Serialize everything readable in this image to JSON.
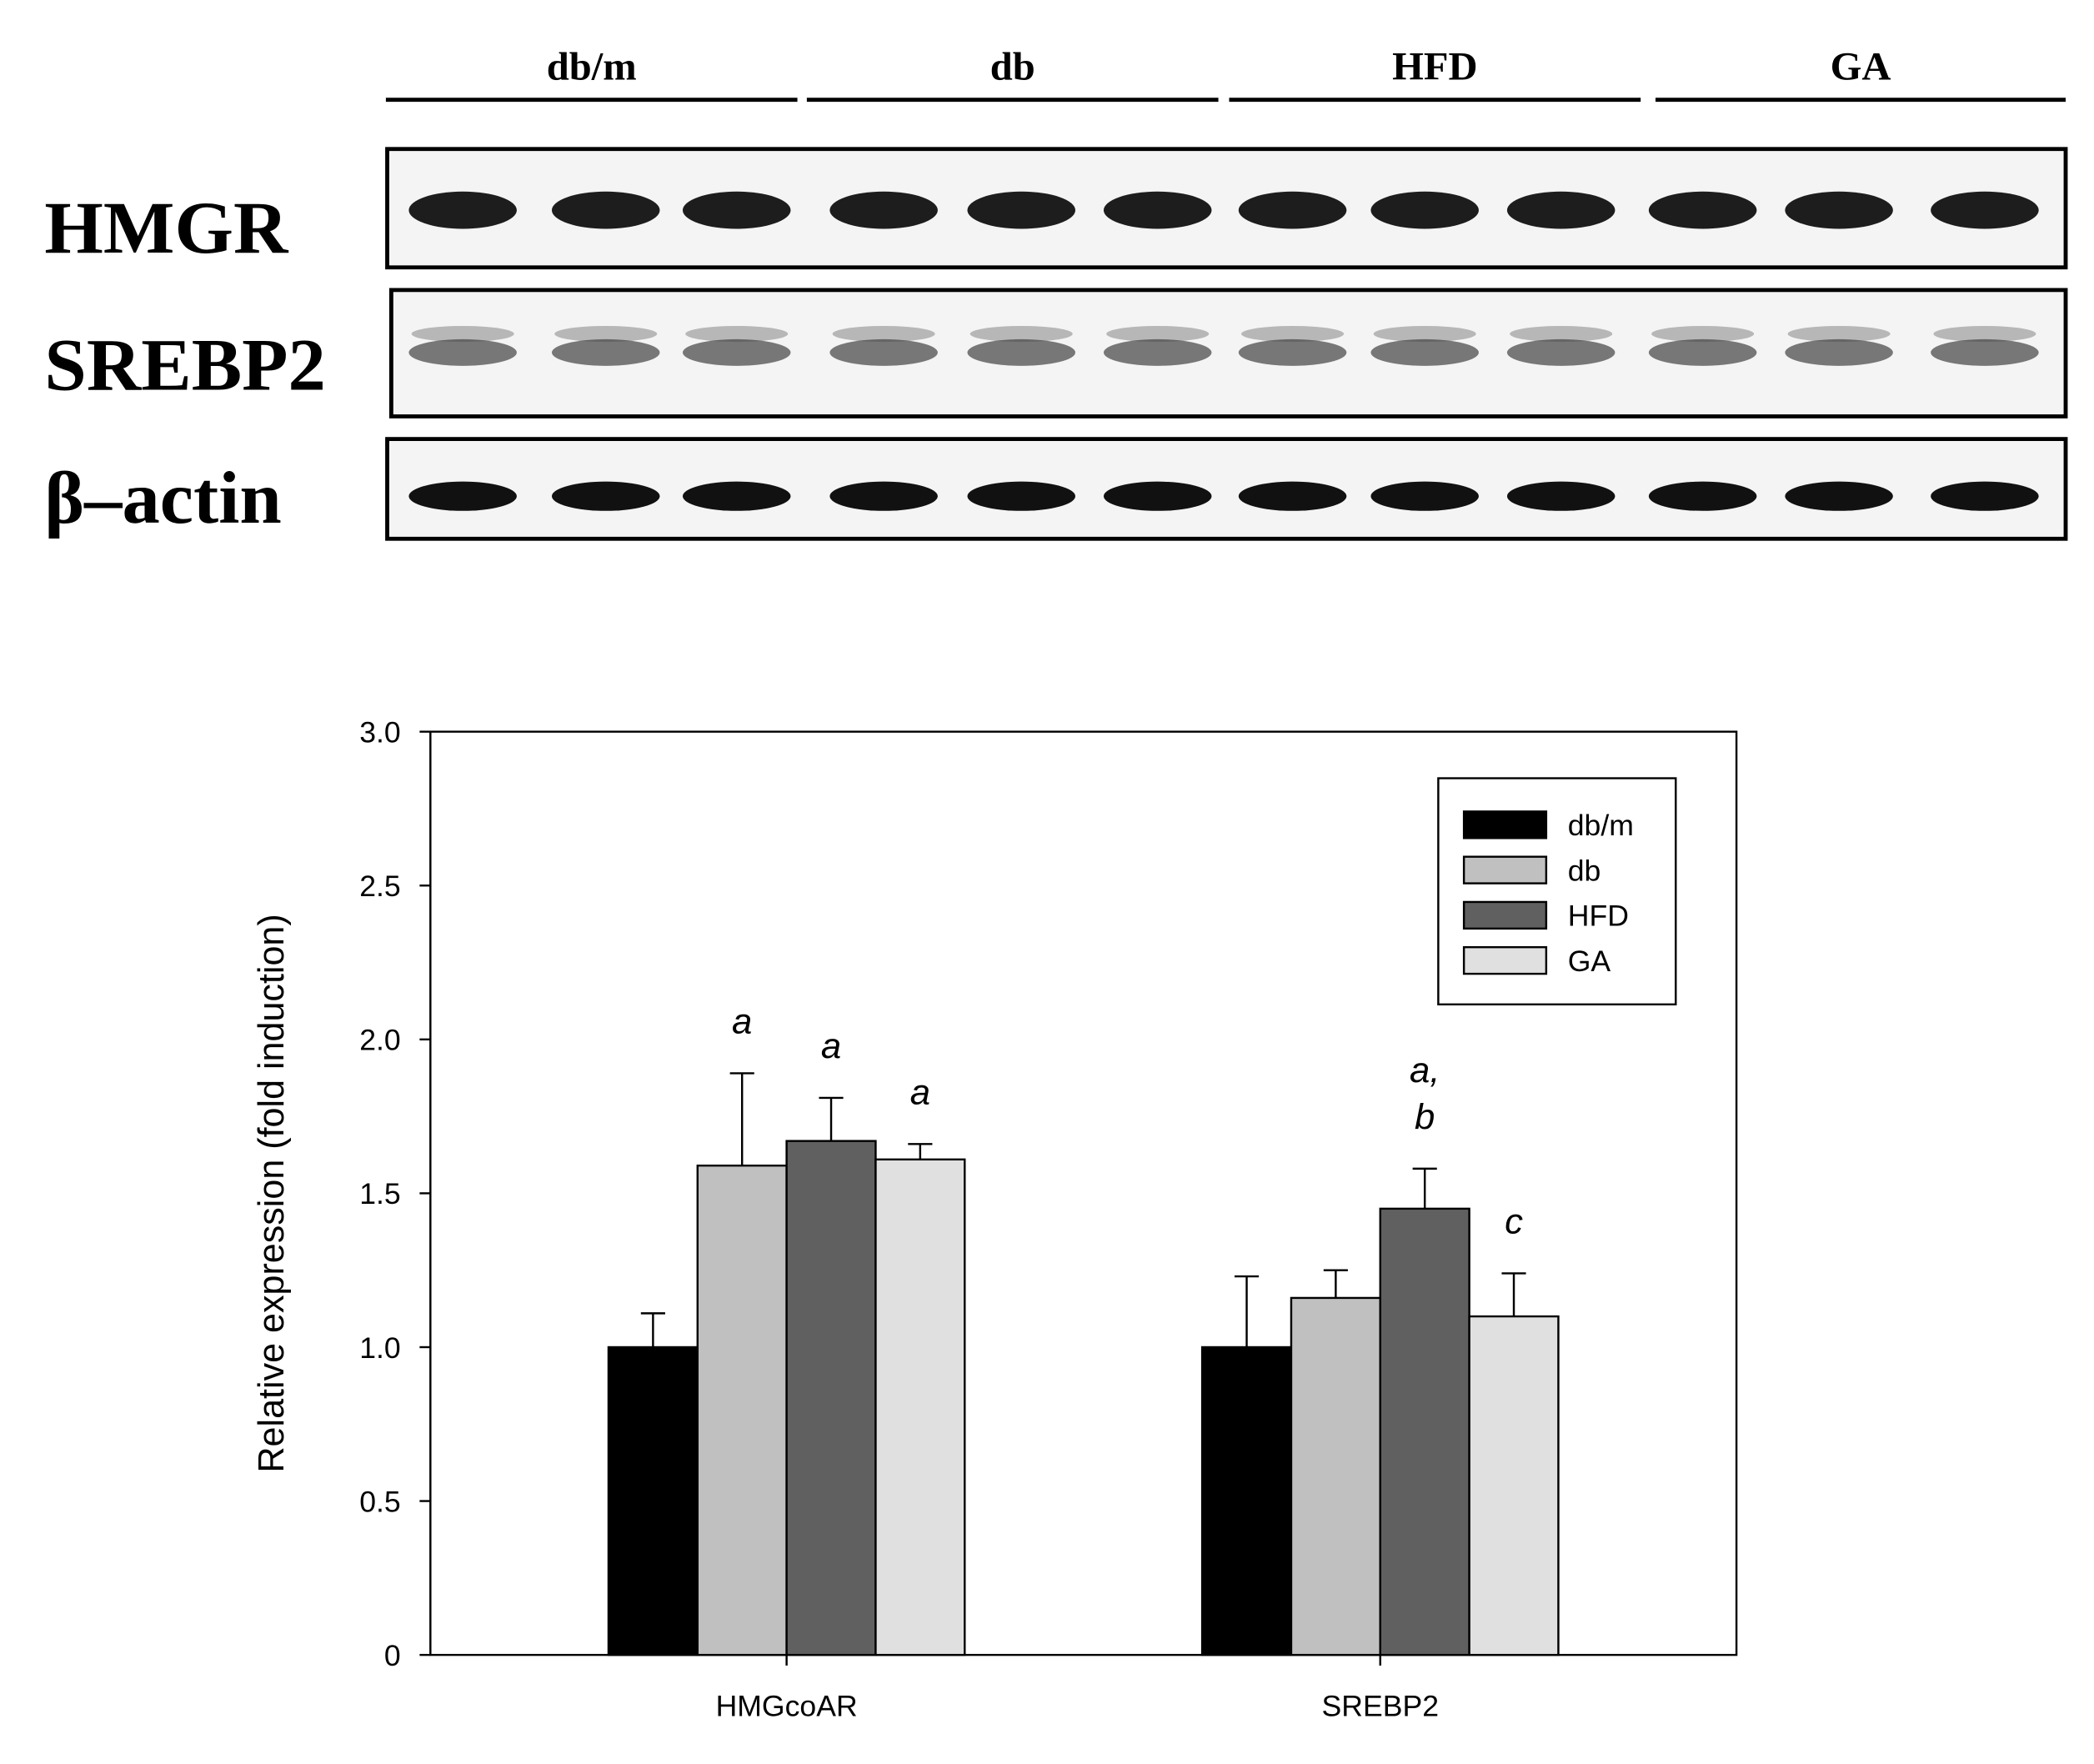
{
  "blot": {
    "groups": [
      "db/m",
      "db",
      "HFD",
      "GA"
    ],
    "rows": [
      "HMGR",
      "SREBP2",
      "β–actin"
    ]
  },
  "chart_data": {
    "type": "bar",
    "y_label": "Relative expression (fold induction)",
    "categories": [
      "HMGcoAR",
      "SREBP2"
    ],
    "series": [
      {
        "name": "db/m",
        "color": "#000000",
        "values": [
          1.0,
          1.0
        ],
        "errors": [
          0.11,
          0.23
        ],
        "labels": [
          null,
          null
        ]
      },
      {
        "name": "db",
        "color": "#c0c0c0",
        "values": [
          1.59,
          1.16
        ],
        "errors": [
          0.3,
          0.09
        ],
        "labels": [
          [
            "a"
          ],
          null
        ]
      },
      {
        "name": "HFD",
        "color": "#606060",
        "values": [
          1.67,
          1.45
        ],
        "errors": [
          0.14,
          0.13
        ],
        "labels": [
          [
            "a"
          ],
          [
            "a,",
            "b"
          ]
        ]
      },
      {
        "name": "GA",
        "color": "#e0e0e0",
        "values": [
          1.61,
          1.1
        ],
        "errors": [
          0.05,
          0.14
        ],
        "labels": [
          [
            "a"
          ],
          [
            "c"
          ]
        ]
      }
    ],
    "ylim": [
      0,
      3
    ],
    "yticks": [
      0,
      0.5,
      {
        "value": 1,
        "label": "1.0"
      },
      1.5,
      {
        "value": 2,
        "label": "2.0"
      },
      2.5,
      {
        "value": 3,
        "label": "3.0"
      }
    ],
    "legend": "upper right"
  }
}
